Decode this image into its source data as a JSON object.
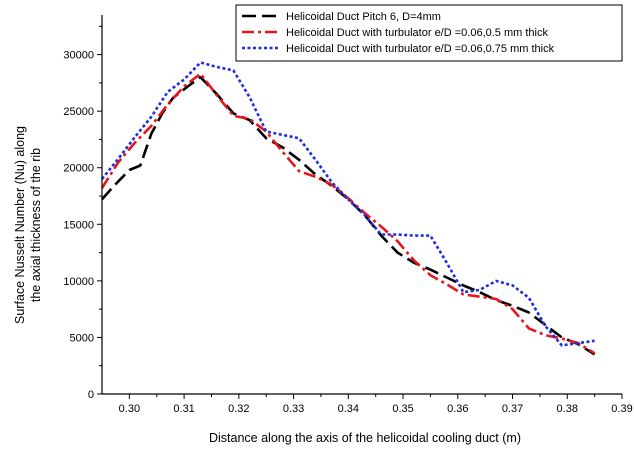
{
  "chart_data": {
    "type": "line",
    "xlabel": "Distance along the axis of the helicoidal cooling duct (m)",
    "ylabel_lines": [
      "Surface Nusselt Number (Nu) along",
      "the axial thickness of the rib"
    ],
    "xlim": [
      0.295,
      0.39
    ],
    "ylim": [
      0,
      33500
    ],
    "x_ticks": [
      0.3,
      0.31,
      0.32,
      0.33,
      0.34,
      0.35,
      0.36,
      0.37,
      0.38,
      0.39
    ],
    "x_tick_labels": [
      "0.30",
      "0.31",
      "0.32",
      "0.33",
      "0.34",
      "0.35",
      "0.36",
      "0.37",
      "0.38",
      "0.39"
    ],
    "y_ticks": [
      0,
      5000,
      10000,
      15000,
      20000,
      25000,
      30000
    ],
    "y_tick_labels": [
      "0",
      "5000",
      "10000",
      "15000",
      "20000",
      "25000",
      "30000"
    ],
    "legend_position": "top-right",
    "series": [
      {
        "name": "Helicoidal Duct Pitch 6, D=4mm",
        "color": "#000000",
        "dash": "long-dash",
        "points": [
          [
            0.295,
            17200
          ],
          [
            0.297,
            18300
          ],
          [
            0.3,
            19800
          ],
          [
            0.302,
            20200
          ],
          [
            0.304,
            23000
          ],
          [
            0.306,
            24800
          ],
          [
            0.308,
            26200
          ],
          [
            0.311,
            27300
          ],
          [
            0.313,
            28000
          ],
          [
            0.316,
            26500
          ],
          [
            0.319,
            24800
          ],
          [
            0.322,
            24200
          ],
          [
            0.325,
            22600
          ],
          [
            0.328,
            21800
          ],
          [
            0.331,
            20700
          ],
          [
            0.334,
            19400
          ],
          [
            0.337,
            18400
          ],
          [
            0.34,
            17200
          ],
          [
            0.343,
            15800
          ],
          [
            0.346,
            14000
          ],
          [
            0.349,
            12500
          ],
          [
            0.352,
            11600
          ],
          [
            0.355,
            11000
          ],
          [
            0.358,
            10300
          ],
          [
            0.361,
            9600
          ],
          [
            0.364,
            9000
          ],
          [
            0.367,
            8300
          ],
          [
            0.37,
            7800
          ],
          [
            0.373,
            7200
          ],
          [
            0.376,
            6100
          ],
          [
            0.379,
            5000
          ],
          [
            0.382,
            4400
          ],
          [
            0.385,
            3500
          ]
        ]
      },
      {
        "name": "Helicoidal Duct with turbulator e/D =0.06,0.5 mm thick",
        "color": "#e8141c",
        "dash": "dash-dot",
        "points": [
          [
            0.295,
            18200
          ],
          [
            0.298,
            20500
          ],
          [
            0.301,
            22200
          ],
          [
            0.304,
            23700
          ],
          [
            0.307,
            25600
          ],
          [
            0.31,
            27200
          ],
          [
            0.313,
            28300
          ],
          [
            0.316,
            26400
          ],
          [
            0.319,
            24600
          ],
          [
            0.322,
            24300
          ],
          [
            0.325,
            23200
          ],
          [
            0.328,
            21400
          ],
          [
            0.331,
            19700
          ],
          [
            0.334,
            19200
          ],
          [
            0.337,
            18500
          ],
          [
            0.34,
            17300
          ],
          [
            0.343,
            16000
          ],
          [
            0.346,
            14800
          ],
          [
            0.349,
            13500
          ],
          [
            0.352,
            11800
          ],
          [
            0.355,
            10500
          ],
          [
            0.358,
            9700
          ],
          [
            0.361,
            8800
          ],
          [
            0.364,
            8600
          ],
          [
            0.367,
            8400
          ],
          [
            0.37,
            7500
          ],
          [
            0.373,
            5800
          ],
          [
            0.376,
            5200
          ],
          [
            0.379,
            4900
          ],
          [
            0.382,
            4500
          ],
          [
            0.385,
            3600
          ]
        ]
      },
      {
        "name": "Helicoidal Duct with turbulator e/D =0.06,0.75 mm thick",
        "color": "#1f2fe0",
        "dash": "dotted",
        "points": [
          [
            0.295,
            19000
          ],
          [
            0.298,
            20800
          ],
          [
            0.301,
            22700
          ],
          [
            0.304,
            24500
          ],
          [
            0.307,
            26700
          ],
          [
            0.31,
            27800
          ],
          [
            0.313,
            29300
          ],
          [
            0.316,
            28900
          ],
          [
            0.319,
            28600
          ],
          [
            0.322,
            26200
          ],
          [
            0.325,
            23200
          ],
          [
            0.328,
            22900
          ],
          [
            0.331,
            22600
          ],
          [
            0.334,
            20700
          ],
          [
            0.337,
            18700
          ],
          [
            0.34,
            17200
          ],
          [
            0.343,
            15800
          ],
          [
            0.346,
            14100
          ],
          [
            0.349,
            14100
          ],
          [
            0.352,
            14000
          ],
          [
            0.355,
            14000
          ],
          [
            0.358,
            11600
          ],
          [
            0.361,
            9000
          ],
          [
            0.364,
            9200
          ],
          [
            0.367,
            10000
          ],
          [
            0.37,
            9600
          ],
          [
            0.373,
            8500
          ],
          [
            0.376,
            6000
          ],
          [
            0.379,
            4300
          ],
          [
            0.382,
            4500
          ],
          [
            0.385,
            4700
          ]
        ]
      }
    ]
  }
}
